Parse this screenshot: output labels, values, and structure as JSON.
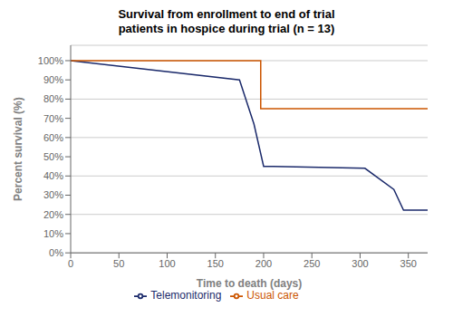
{
  "chart_data": {
    "type": "line",
    "title": "Survival from enrollment to end of trial",
    "subtitle": "patients in hospice during trial (n = 13)",
    "x_label": "Time to death (days)",
    "y_label": "Percent survival (%)",
    "xlim": [
      0,
      370
    ],
    "ylim": [
      0,
      1.08
    ],
    "xticks": [
      0,
      50,
      100,
      150,
      200,
      250,
      300,
      350
    ],
    "yticks": [
      {
        "value": 0.0,
        "label": "0%"
      },
      {
        "value": 0.1,
        "label": "10%"
      },
      {
        "value": 0.2,
        "label": "20%"
      },
      {
        "value": 0.3,
        "label": "30%"
      },
      {
        "value": 0.4,
        "label": "40%"
      },
      {
        "value": 0.5,
        "label": "50%"
      },
      {
        "value": 0.6,
        "label": "60%"
      },
      {
        "value": 0.7,
        "label": "70%"
      },
      {
        "value": 0.8,
        "label": "80%"
      },
      {
        "value": 0.9,
        "label": "90%"
      },
      {
        "value": 1.0,
        "label": "100%"
      }
    ],
    "grid": "y",
    "legend": "bottom",
    "series": [
      {
        "name": "Telemonitoring",
        "color": "#1b2a6b",
        "x": [
          0,
          175,
          175,
          190,
          190,
          200,
          200,
          210,
          210,
          305,
          305,
          335,
          335,
          345,
          345,
          370
        ],
        "values": [
          1.0,
          0.9,
          0.9,
          0.67,
          0.67,
          0.45,
          0.45,
          0.45,
          0.45,
          0.44,
          0.44,
          0.33,
          0.33,
          0.222,
          0.222,
          0.222
        ]
      },
      {
        "name": "Usual care",
        "color": "#cc5500",
        "x": [
          0,
          197,
          197,
          210,
          210,
          370
        ],
        "values": [
          1.0,
          1.0,
          0.75,
          0.75,
          0.75,
          0.75
        ]
      }
    ]
  }
}
